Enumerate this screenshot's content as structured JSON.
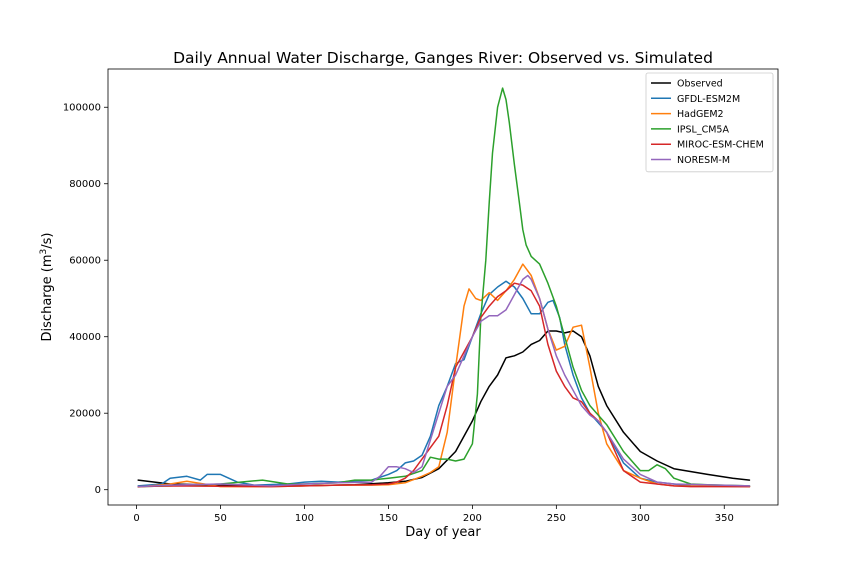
{
  "chart_data": {
    "type": "line",
    "title": "Daily Annual Water Discharge, Ganges River: Observed vs. Simulated",
    "xlabel": "Day of year",
    "ylabel_prefix": "Discharge (m",
    "ylabel_sup": "3",
    "ylabel_suffix": "/s)",
    "xlim": [
      -17,
      382
    ],
    "ylim": [
      -4000,
      110000
    ],
    "xticks": [
      0,
      50,
      100,
      150,
      200,
      250,
      300,
      350
    ],
    "xtick_labels": [
      "0",
      "50",
      "100",
      "150",
      "200",
      "250",
      "300",
      "350"
    ],
    "yticks": [
      0,
      20000,
      40000,
      60000,
      80000,
      100000
    ],
    "ytick_labels": [
      "0",
      "20000",
      "40000",
      "60000",
      "80000",
      "100000"
    ],
    "grid": false,
    "legend_position": "top-right",
    "series": [
      {
        "name": "Observed",
        "color": "#000000",
        "x": [
          1,
          20,
          50,
          97,
          130,
          150,
          160,
          170,
          180,
          190,
          200,
          205,
          210,
          215,
          220,
          225,
          230,
          235,
          240,
          245,
          250,
          255,
          260,
          265,
          270,
          275,
          280,
          290,
          300,
          310,
          320,
          340,
          355,
          365
        ],
        "y": [
          2500,
          1500,
          1200,
          1000,
          1300,
          1800,
          2200,
          3200,
          5500,
          10000,
          18000,
          23000,
          27000,
          30000,
          34500,
          35000,
          36000,
          38000,
          39000,
          41500,
          41500,
          41000,
          41500,
          40000,
          35000,
          27000,
          22000,
          15000,
          10000,
          7500,
          5500,
          4000,
          3000,
          2500
        ]
      },
      {
        "name": "GFDL-ESM2M",
        "color": "#1f77b4",
        "x": [
          1,
          15,
          20,
          30,
          38,
          42,
          50,
          60,
          70,
          90,
          100,
          110,
          120,
          140,
          150,
          155,
          160,
          165,
          170,
          175,
          180,
          185,
          190,
          195,
          200,
          205,
          210,
          215,
          220,
          225,
          230,
          235,
          240,
          245,
          248,
          252,
          255,
          260,
          265,
          270,
          280,
          290,
          300,
          310,
          320,
          330,
          365
        ],
        "y": [
          1000,
          1500,
          3000,
          3500,
          2500,
          4000,
          4000,
          2000,
          1200,
          1500,
          2000,
          2200,
          2000,
          2500,
          4000,
          5000,
          7000,
          7500,
          9000,
          14000,
          22000,
          27000,
          33000,
          34000,
          40000,
          46000,
          51000,
          53000,
          54500,
          53000,
          50000,
          46000,
          46000,
          49000,
          49500,
          45000,
          38000,
          30000,
          24000,
          20000,
          15000,
          7000,
          3000,
          2000,
          1500,
          1000,
          800
        ]
      },
      {
        "name": "HadGEM2",
        "color": "#ff7f0e",
        "x": [
          1,
          20,
          30,
          50,
          80,
          100,
          120,
          140,
          150,
          160,
          170,
          175,
          180,
          185,
          190,
          195,
          198,
          202,
          205,
          210,
          215,
          220,
          225,
          230,
          235,
          240,
          245,
          250,
          255,
          260,
          265,
          270,
          275,
          280,
          290,
          300,
          310,
          320,
          365
        ],
        "y": [
          700,
          1500,
          2200,
          800,
          800,
          1000,
          1200,
          1200,
          1300,
          1800,
          3500,
          4500,
          6000,
          15000,
          32000,
          48000,
          52500,
          50000,
          49500,
          51500,
          49500,
          52000,
          55000,
          59000,
          56000,
          50000,
          42000,
          36500,
          37500,
          42500,
          43000,
          32000,
          20000,
          12000,
          5000,
          3000,
          1500,
          1000,
          800
        ]
      },
      {
        "name": "IPSL_CM5A",
        "color": "#2ca02c",
        "x": [
          1,
          20,
          50,
          75,
          90,
          100,
          120,
          130,
          140,
          150,
          160,
          170,
          175,
          180,
          185,
          190,
          195,
          200,
          203,
          205,
          208,
          210,
          212,
          215,
          218,
          220,
          222,
          225,
          228,
          230,
          232,
          235,
          240,
          245,
          250,
          255,
          260,
          265,
          270,
          280,
          290,
          300,
          305,
          310,
          315,
          320,
          330,
          340,
          365
        ],
        "y": [
          800,
          1000,
          1500,
          2500,
          1500,
          1500,
          1800,
          2500,
          2500,
          3000,
          3500,
          5000,
          8500,
          8000,
          8000,
          7500,
          8000,
          12000,
          25000,
          45000,
          60000,
          75000,
          88000,
          100000,
          105000,
          102000,
          96000,
          85000,
          75000,
          68000,
          64000,
          61000,
          59000,
          54000,
          48000,
          40000,
          32000,
          26000,
          22000,
          17000,
          10000,
          5000,
          5000,
          6500,
          5500,
          3000,
          1500,
          1300,
          1000
        ]
      },
      {
        "name": "MIROC-ESM-CHEM",
        "color": "#d62728",
        "x": [
          1,
          20,
          50,
          80,
          100,
          120,
          140,
          150,
          155,
          160,
          165,
          170,
          175,
          180,
          185,
          190,
          195,
          200,
          205,
          210,
          215,
          220,
          225,
          230,
          235,
          240,
          245,
          250,
          255,
          260,
          265,
          270,
          275,
          280,
          285,
          290,
          300,
          310,
          320,
          330,
          365
        ],
        "y": [
          800,
          1000,
          900,
          800,
          1000,
          1200,
          1300,
          1500,
          2000,
          3000,
          5000,
          8000,
          11000,
          14000,
          22000,
          32000,
          36000,
          40000,
          45000,
          48000,
          50500,
          52000,
          54000,
          53500,
          52000,
          48000,
          38000,
          31000,
          27000,
          24000,
          23000,
          20000,
          18000,
          15000,
          10000,
          5000,
          2000,
          1500,
          1000,
          800,
          800
        ]
      },
      {
        "name": "NORESM-M",
        "color": "#9467bd",
        "x": [
          1,
          20,
          50,
          80,
          100,
          120,
          140,
          145,
          150,
          155,
          160,
          165,
          170,
          175,
          180,
          185,
          190,
          195,
          200,
          205,
          210,
          215,
          220,
          225,
          230,
          233,
          235,
          240,
          245,
          250,
          255,
          260,
          265,
          270,
          275,
          280,
          290,
          300,
          310,
          320,
          365
        ],
        "y": [
          800,
          1200,
          1500,
          1000,
          1500,
          1800,
          2000,
          3500,
          6000,
          6000,
          5500,
          4500,
          6000,
          13000,
          20000,
          27000,
          30000,
          35000,
          40000,
          44000,
          45500,
          45500,
          47000,
          51000,
          55000,
          56000,
          55000,
          50000,
          42000,
          35000,
          30000,
          26000,
          22000,
          19500,
          18000,
          15000,
          8000,
          4000,
          2000,
          1500,
          1000
        ]
      }
    ]
  }
}
